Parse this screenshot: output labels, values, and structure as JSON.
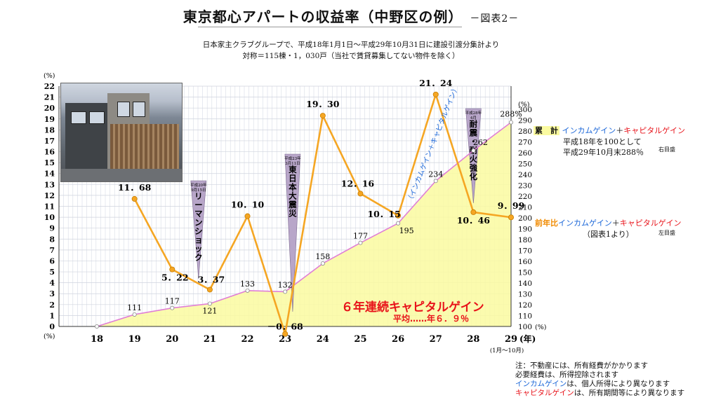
{
  "header": {
    "title": "東京都心アパートの収益率（中野区の例）",
    "title_suffix": "－図表2－",
    "source_line": "日本家主クラブグループで、平成18年1月1日～平成29年10月31日に建設引渡分集計より",
    "target_line": "対称＝115棟・1，030戸（当社で賃貸募集してない物件を除く）"
  },
  "axes": {
    "left_unit_top": "(%)",
    "left_unit_bottom": "(%)",
    "right_unit_top": "(%)",
    "right_unit_bottom": "(%)",
    "x_unit": "(年)",
    "x_last_note": "(1月～10月)"
  },
  "chart_data": {
    "type": "line",
    "x": [
      "18",
      "19",
      "20",
      "21",
      "22",
      "23",
      "24",
      "25",
      "26",
      "27",
      "28",
      "29"
    ],
    "left_axis": {
      "ylim": [
        0,
        22
      ],
      "ticks": [
        0,
        1,
        2,
        3,
        4,
        5,
        6,
        7,
        8,
        9,
        10,
        11,
        12,
        13,
        14,
        15,
        16,
        17,
        18,
        19,
        20,
        21,
        22
      ]
    },
    "right_axis": {
      "ylim": [
        100,
        300
      ],
      "ticks": [
        100,
        110,
        120,
        130,
        140,
        150,
        160,
        170,
        180,
        190,
        200,
        210,
        220,
        230,
        240,
        250,
        260,
        270,
        280,
        290,
        300
      ]
    },
    "series": [
      {
        "name": "前年比インカムゲイン＋キャピタルゲイン",
        "axis": "left",
        "color": "#f5a623",
        "values": [
          null,
          11.68,
          5.22,
          3.37,
          10.1,
          -0.68,
          19.3,
          12.16,
          10.15,
          21.24,
          10.46,
          9.99
        ],
        "labels": [
          "",
          "11．68",
          "5．22",
          "3．37",
          "10．10",
          "－0．68",
          "19．30",
          "12．16",
          "10．15",
          "21．24",
          "10．46",
          "9．99"
        ]
      },
      {
        "name": "累計インカムゲイン＋キャピタルゲイン",
        "axis": "right",
        "color": "#e07fd6",
        "fill": "#fafaa0",
        "values": [
          100,
          111,
          117,
          121,
          133,
          132,
          158,
          177,
          195,
          234,
          262,
          288
        ],
        "labels": [
          "",
          "111",
          "117",
          "121",
          "133",
          "132",
          "158",
          "177",
          "195",
          "234",
          "262",
          "288%"
        ]
      }
    ],
    "events": [
      {
        "x": "20.7",
        "lines": [
          "平成20年",
          "9月15日"
        ],
        "text": "リーマンショック"
      },
      {
        "x": "23",
        "lines": [
          "平成23年",
          "3月11日"
        ],
        "text": "東日本大震災"
      },
      {
        "x": "28",
        "lines": [
          "平成28年",
          "4月"
        ],
        "text": "耐震・耐火強化"
      }
    ],
    "diagonal_label": "（インカムゲイン＋キャピタルゲイン）",
    "grid": true
  },
  "legend": {
    "cumulative_label": "累　計",
    "income": "インカムゲイン",
    "plus": "＋",
    "capital": "キャピタルゲイン",
    "cumulative_note1": "平成18年を100として",
    "cumulative_note2": "平成29年10月末288％",
    "cumulative_scale": "右目盛",
    "yoy_label": "前年比",
    "yoy_note": "（図表1より）",
    "yoy_scale": "左目盛"
  },
  "caption": {
    "main": "６年連続キャピタルゲイン",
    "avg": "平均……年６．９％"
  },
  "footnotes": {
    "line1": "注：不動産には、所有経費がかかります",
    "line2": "必要経費は、所得控除されます",
    "line3_colored": "インカムゲイン",
    "line3_rest": "は、個人所得により異なります",
    "line4_colored": "キャピタルゲイン",
    "line4_rest": "は、所有期間等により異なります"
  }
}
